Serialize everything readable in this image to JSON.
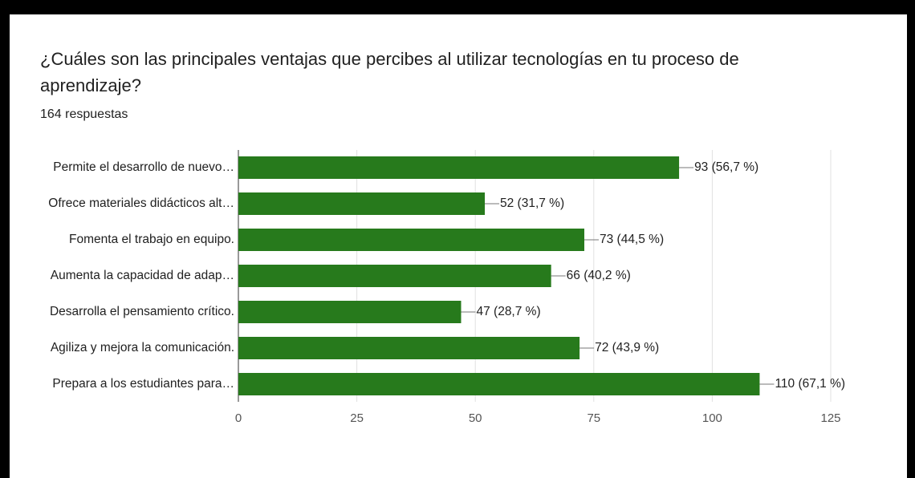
{
  "chart_data": {
    "type": "bar",
    "orientation": "horizontal",
    "title": "¿Cuáles son las principales ventajas que percibes al utilizar tecnologías en tu proceso de aprendizaje?",
    "subtitle": "164 respuestas",
    "categories": [
      "Permite el desarrollo de nuevo…",
      "Ofrece materiales didácticos alt…",
      "Fomenta el trabajo en equipo.",
      "Aumenta la capacidad de adap…",
      "Desarrolla el pensamiento crítico.",
      "Agiliza y mejora la comunicación.",
      "Prepara a los estudiantes para…"
    ],
    "values": [
      93,
      52,
      73,
      66,
      47,
      72,
      110
    ],
    "value_labels": [
      "93 (56,7 %)",
      "52 (31,7 %)",
      "73 (44,5 %)",
      "66 (40,2 %)",
      "47 (28,7 %)",
      "72 (43,9 %)",
      "110 (67,1 %)"
    ],
    "color": "#277a1c",
    "xlim": [
      0,
      125
    ],
    "xticks": [
      0,
      25,
      50,
      75,
      100,
      125
    ],
    "grid": true
  }
}
